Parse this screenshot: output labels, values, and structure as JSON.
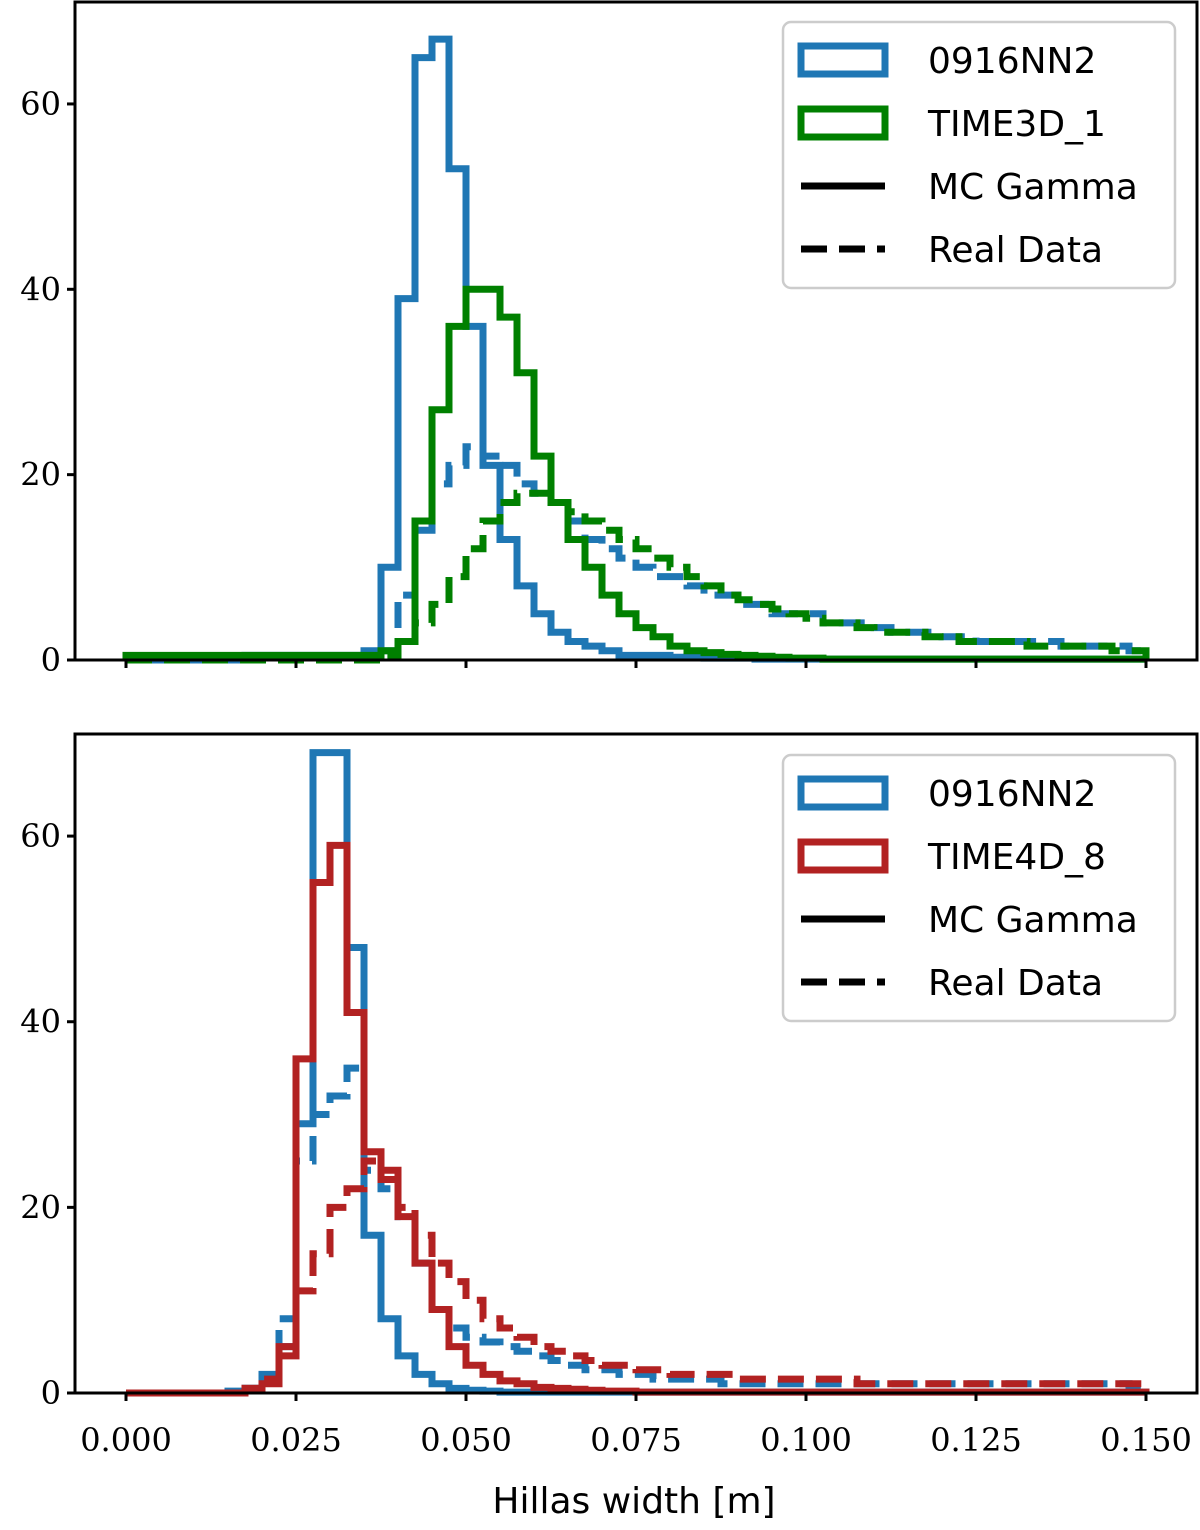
{
  "chart_data": [
    {
      "type": "histogram",
      "panel": "top",
      "xlabel": "",
      "ylabel": "",
      "xlim": [
        -0.0075,
        0.1575
      ],
      "ylim": [
        0,
        71
      ],
      "x_ticks": [
        0.0,
        0.025,
        0.05,
        0.075,
        0.1,
        0.125,
        0.15
      ],
      "y_ticks": [
        0,
        20,
        40,
        60
      ],
      "y_tick_labels": [
        "0",
        "20",
        "40",
        "60"
      ],
      "bin_width": 0.0025,
      "bin_start": 0.0,
      "legend_position": "top-right",
      "legend": [
        {
          "label": "0916NN2",
          "kind": "patch",
          "color": "#1f77b4"
        },
        {
          "label": "TIME3D_1",
          "kind": "patch",
          "color": "#008000"
        },
        {
          "label": "MC Gamma",
          "kind": "solid-line",
          "color": "#000000"
        },
        {
          "label": "Real Data",
          "kind": "dashed-line",
          "color": "#000000"
        }
      ],
      "series": [
        {
          "name": "0916NN2 MC Gamma",
          "color": "#1f77b4",
          "dash": false,
          "values": [
            0,
            0,
            0,
            0,
            0,
            0,
            0,
            0.5,
            0.5,
            0.5,
            0.5,
            0.5,
            0.5,
            0.5,
            1,
            10,
            39,
            65,
            67,
            53,
            36,
            21,
            13,
            8,
            5,
            3,
            2,
            1.5,
            1,
            0.5,
            0.5,
            0.5,
            0.3,
            0.3,
            0.2,
            0.2,
            0.2,
            0.1,
            0.1,
            0.1,
            0.1,
            0.1,
            0.1,
            0.1,
            0.1,
            0.1,
            0.1,
            0.1,
            0.1,
            0.1,
            0.1,
            0.1,
            0.1,
            0.1,
            0.1,
            0.1,
            0.1,
            0.1,
            0.1,
            0.1
          ]
        },
        {
          "name": "0916NN2 Real Data",
          "color": "#1f77b4",
          "dash": true,
          "values": [
            0,
            0,
            0,
            0,
            0,
            0,
            0,
            0,
            0,
            0,
            0,
            0,
            0,
            0,
            0,
            1,
            7,
            14,
            19,
            21,
            23,
            22,
            21,
            19,
            18,
            17,
            15,
            13,
            12,
            11,
            10,
            9,
            9,
            8,
            7,
            7,
            6,
            6,
            5,
            5,
            5,
            4,
            4,
            4,
            3.5,
            3,
            3,
            3,
            2.5,
            2.5,
            2,
            2,
            2,
            2,
            2,
            1.5,
            1.5,
            1.5,
            1.5,
            1
          ]
        },
        {
          "name": "TIME3D_1 MC Gamma",
          "color": "#008000",
          "dash": false,
          "values": [
            0.5,
            0.5,
            0.5,
            0.5,
            0.5,
            0.5,
            0.5,
            0.5,
            0.5,
            0.5,
            0.5,
            0.5,
            0.5,
            0.5,
            0.5,
            1,
            2,
            15,
            27,
            36,
            40,
            40,
            37,
            31,
            22,
            17,
            13,
            10,
            7,
            5,
            3.5,
            2.5,
            1.5,
            1,
            0.8,
            0.6,
            0.5,
            0.4,
            0.3,
            0.2,
            0.2,
            0.1,
            0.1,
            0.1,
            0.1,
            0.1,
            0.1,
            0.1,
            0.1,
            0.1,
            0.1,
            0.1,
            0.1,
            0.1,
            0.1,
            0.1,
            0.1,
            0.1,
            0.1,
            0.1
          ]
        },
        {
          "name": "TIME3D_1 Real Data",
          "color": "#008000",
          "dash": true,
          "values": [
            0,
            0,
            0,
            0,
            0,
            0,
            0,
            0,
            0,
            0,
            0,
            0,
            0,
            0,
            0,
            0.5,
            2,
            4,
            6,
            9,
            12,
            15,
            17,
            18,
            18,
            17,
            16,
            15,
            14,
            13,
            12,
            11,
            10,
            9,
            8,
            7,
            6.5,
            6,
            5.5,
            5,
            4.5,
            4,
            4,
            3.5,
            3,
            3,
            3,
            2.5,
            2.5,
            2,
            2,
            2,
            2,
            1.5,
            1.5,
            1.5,
            1.5,
            1.5,
            1,
            1
          ]
        }
      ]
    },
    {
      "type": "histogram",
      "panel": "bottom",
      "xlabel": "Hillas width [m]",
      "ylabel": "",
      "xlim": [
        -0.0075,
        0.1575
      ],
      "ylim": [
        0,
        71
      ],
      "x_ticks": [
        0.0,
        0.025,
        0.05,
        0.075,
        0.1,
        0.125,
        0.15
      ],
      "x_tick_labels": [
        "0.000",
        "0.025",
        "0.050",
        "0.075",
        "0.100",
        "0.125",
        "0.150"
      ],
      "y_ticks": [
        0,
        20,
        40,
        60
      ],
      "y_tick_labels": [
        "0",
        "20",
        "40",
        "60"
      ],
      "bin_width": 0.0025,
      "bin_start": 0.0,
      "legend_position": "top-right",
      "legend": [
        {
          "label": "0916NN2",
          "kind": "patch",
          "color": "#1f77b4"
        },
        {
          "label": "TIME4D_8",
          "kind": "patch",
          "color": "#b22222"
        },
        {
          "label": "MC Gamma",
          "kind": "solid-line",
          "color": "#000000"
        },
        {
          "label": "Real Data",
          "kind": "dashed-line",
          "color": "#000000"
        }
      ],
      "series": [
        {
          "name": "0916NN2 MC Gamma",
          "color": "#1f77b4",
          "dash": false,
          "values": [
            0,
            0,
            0,
            0,
            0,
            0,
            0.2,
            0.5,
            1.5,
            5,
            29,
            69,
            69,
            48,
            17,
            8,
            4,
            2,
            1,
            0.5,
            0.3,
            0.2,
            0.1,
            0.1,
            0.1,
            0.1,
            0.1,
            0.1,
            0.1,
            0.1,
            0.1,
            0.1,
            0.1,
            0.1,
            0.1,
            0.1,
            0.1,
            0.1,
            0.1,
            0.1,
            0.1,
            0.1,
            0.1,
            0.1,
            0.1,
            0.1,
            0.1,
            0.1,
            0.1,
            0.1,
            0.1,
            0.1,
            0.1,
            0.1,
            0.1,
            0.1,
            0.1,
            0.1,
            0.1,
            0.1
          ]
        },
        {
          "name": "0916NN2 Real Data",
          "color": "#1f77b4",
          "dash": true,
          "values": [
            0,
            0,
            0,
            0,
            0,
            0,
            0,
            0.5,
            2,
            8,
            25,
            30,
            32,
            35,
            24,
            22,
            19,
            14,
            9,
            7,
            6,
            5.5,
            5,
            4.5,
            4,
            3.5,
            3,
            2.5,
            2.5,
            2,
            2,
            1.5,
            1.5,
            1.5,
            1.5,
            1,
            1,
            1,
            1,
            1,
            1,
            1,
            1,
            1,
            1,
            1,
            1,
            1,
            1,
            1,
            1,
            1,
            1,
            1,
            1,
            1,
            1,
            1,
            1,
            0.5
          ]
        },
        {
          "name": "TIME4D_8 MC Gamma",
          "color": "#b22222",
          "dash": false,
          "values": [
            0,
            0,
            0,
            0,
            0,
            0,
            0,
            0.5,
            1,
            4,
            36,
            55,
            59,
            41,
            26,
            24,
            19,
            14,
            9,
            5,
            3,
            2,
            1.3,
            1,
            0.6,
            0.5,
            0.4,
            0.3,
            0.2,
            0.2,
            0.1,
            0.1,
            0.1,
            0.1,
            0.1,
            0.1,
            0.1,
            0.1,
            0.1,
            0.1,
            0.1,
            0.1,
            0.1,
            0.1,
            0.1,
            0.1,
            0.1,
            0.1,
            0.1,
            0.1,
            0.1,
            0.1,
            0.1,
            0.1,
            0.1,
            0.1,
            0.1,
            0.1,
            0.1,
            0.1
          ]
        },
        {
          "name": "TIME4D_8 Real Data",
          "color": "#b22222",
          "dash": true,
          "values": [
            0,
            0,
            0,
            0,
            0,
            0,
            0,
            0.5,
            1.5,
            5,
            11,
            15,
            20,
            22,
            25,
            23,
            20,
            17,
            14,
            12,
            10,
            8,
            7,
            6,
            5,
            4.5,
            4,
            3.5,
            3,
            3,
            2.5,
            2.5,
            2,
            2,
            2,
            2,
            1.5,
            1.5,
            1.5,
            1.5,
            1.5,
            1.5,
            1.5,
            1,
            1,
            1,
            1,
            1,
            1,
            1,
            1,
            1,
            1,
            1,
            1,
            1,
            1,
            1,
            1,
            1
          ]
        }
      ]
    }
  ]
}
